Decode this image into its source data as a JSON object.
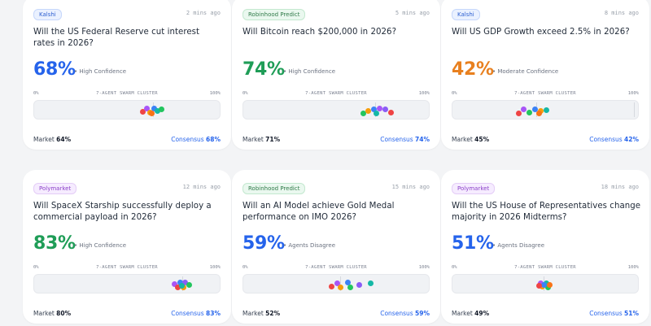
{
  "common": {
    "scale_min": "0%",
    "scale_title": "7-AGENT SWARM CLUSTER",
    "scale_max": "100%",
    "market_label": "Market",
    "consensus_label": "Consensus"
  },
  "cards": [
    {
      "badge": "Kalshi",
      "badge_type": "kalshi",
      "time": "2 mins ago",
      "question": "Will the US Federal Reserve cut interest rates in 2026?",
      "percent": "68%",
      "percent_color": "#2563eb",
      "confidence": "• High Confidence",
      "market": "64%",
      "consensus": "68%",
      "market_value": 64,
      "agent_colors": [
        "#ef4444",
        "#a855f7",
        "#f59e0b",
        "#3b82f6",
        "#14b8a6",
        "#22c55e",
        "#f97316"
      ]
    },
    {
      "badge": "Robinhood Predict",
      "badge_type": "robinhood",
      "time": "5 mins ago",
      "question": "Will Bitcoin reach $200,000 in 2026?",
      "percent": "74%",
      "percent_color": "#1f9d57",
      "confidence": "• High Confidence",
      "market": "71%",
      "consensus": "74%",
      "market_value": 71,
      "agent_colors": [
        "#22c55e",
        "#f59e0b",
        "#3b82f6",
        "#a855f7",
        "#8b5cf6",
        "#ef4444",
        "#14b8a6"
      ]
    },
    {
      "badge": "Kalshi",
      "badge_type": "kalshi",
      "time": "8 mins ago",
      "question": "Will US GDP Growth exceed 2.5% in 2026?",
      "percent": "42%",
      "percent_color": "#e8801f",
      "confidence": "• Moderate Confidence",
      "market": "45%",
      "consensus": "42%",
      "market_value": 45,
      "agent_colors": [
        "#ef4444",
        "#a855f7",
        "#22c55e",
        "#3b82f6",
        "#f59e0b",
        "#14b8a6",
        "#f97316"
      ]
    },
    {
      "badge": "Polymarket",
      "badge_type": "polymarket",
      "time": "12 mins ago",
      "question": "Will SpaceX Starship successfully deploy a commercial payload in 2026?",
      "percent": "83%",
      "percent_color": "#1f9d57",
      "confidence": "• High Confidence",
      "market": "80%",
      "consensus": "83%",
      "market_value": 80,
      "agent_colors": [
        "#a855f7",
        "#3b82f6",
        "#8b5cf6",
        "#ef4444",
        "#f59e0b",
        "#22c55e",
        "#14b8a6"
      ]
    },
    {
      "badge": "Robinhood Predict",
      "badge_type": "robinhood",
      "time": "15 mins ago",
      "question": "Will an AI Model achieve Gold Medal performance on IMO 2026?",
      "percent": "59%",
      "percent_color": "#2563eb",
      "confidence": "• Agents Disagree",
      "market": "52%",
      "consensus": "59%",
      "market_value": 52,
      "agent_colors": [
        "#ef4444",
        "#a855f7",
        "#3b82f6",
        "#8b5cf6",
        "#14b8a6",
        "#f59e0b",
        "#22c55e"
      ]
    },
    {
      "badge": "Polymarket",
      "badge_type": "polymarket",
      "time": "18 mins ago",
      "question": "Will the US House of Representatives change majority in 2026 Midterms?",
      "percent": "51%",
      "percent_color": "#2563eb",
      "confidence": "• Agents Disagree",
      "market": "49%",
      "consensus": "51%",
      "market_value": 49,
      "agent_colors": [
        "#a855f7",
        "#14b8a6",
        "#f59e0b",
        "#22c55e",
        "#3b82f6",
        "#ef4444",
        "#f97316"
      ]
    }
  ]
}
